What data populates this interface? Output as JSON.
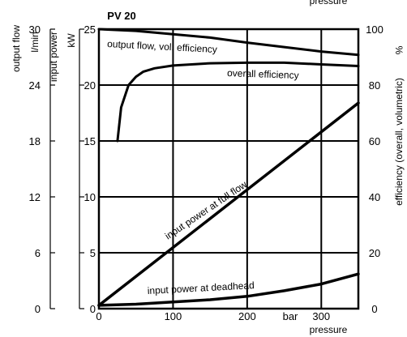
{
  "chart_data": {
    "type": "line",
    "title": "PV 20",
    "top_right_label": "pressure",
    "x_axis": {
      "label_unit": "bar",
      "label": "pressure",
      "range": [
        0,
        350
      ],
      "ticks": [
        0,
        100,
        200,
        300
      ],
      "tick_labels": [
        "0",
        "100",
        "200",
        "300"
      ]
    },
    "y_axis_power": {
      "label": "input power",
      "unit": "kW",
      "range": [
        0,
        25
      ],
      "ticks": [
        0,
        5,
        10,
        15,
        20,
        25
      ],
      "tick_labels": [
        "0",
        "5",
        "10",
        "15",
        "20",
        "25"
      ]
    },
    "y_axis_flow": {
      "label": "output flow",
      "unit": "l/min",
      "range": [
        0,
        30
      ],
      "ticks": [
        0,
        6,
        12,
        18,
        24,
        30
      ],
      "tick_labels": [
        "0",
        "6",
        "12",
        "18",
        "24",
        "30"
      ]
    },
    "y_axis_efficiency": {
      "label": "efficiency (overall, volumetric)",
      "unit": "%",
      "range": [
        0,
        100
      ],
      "ticks": [
        0,
        20,
        40,
        60,
        80,
        100
      ],
      "tick_labels": [
        "0",
        "20",
        "40",
        "60",
        "80",
        "100"
      ]
    },
    "grid": true,
    "series": [
      {
        "name": "output flow, vol. efficiency",
        "axis": "efficiency",
        "x": [
          0,
          50,
          100,
          150,
          200,
          250,
          300,
          350
        ],
        "y": [
          100,
          99.4,
          98.2,
          97,
          95.2,
          93.6,
          92,
          90.8
        ]
      },
      {
        "name": "overall efficiency",
        "axis": "efficiency",
        "x": [
          25,
          30,
          40,
          50,
          60,
          75,
          100,
          150,
          200,
          250,
          300,
          350
        ],
        "y": [
          60,
          72,
          80,
          83,
          84.8,
          86,
          87,
          87.8,
          88,
          88,
          87.4,
          86.8
        ]
      },
      {
        "name": "input power at full flow",
        "axis": "power",
        "x": [
          0,
          350
        ],
        "y": [
          0.3,
          18.4
        ]
      },
      {
        "name": "input power at deadhead",
        "axis": "power",
        "x": [
          0,
          50,
          100,
          150,
          200,
          250,
          300,
          350
        ],
        "y": [
          0.3,
          0.4,
          0.6,
          0.8,
          1.1,
          1.6,
          2.2,
          3.1
        ]
      }
    ]
  }
}
